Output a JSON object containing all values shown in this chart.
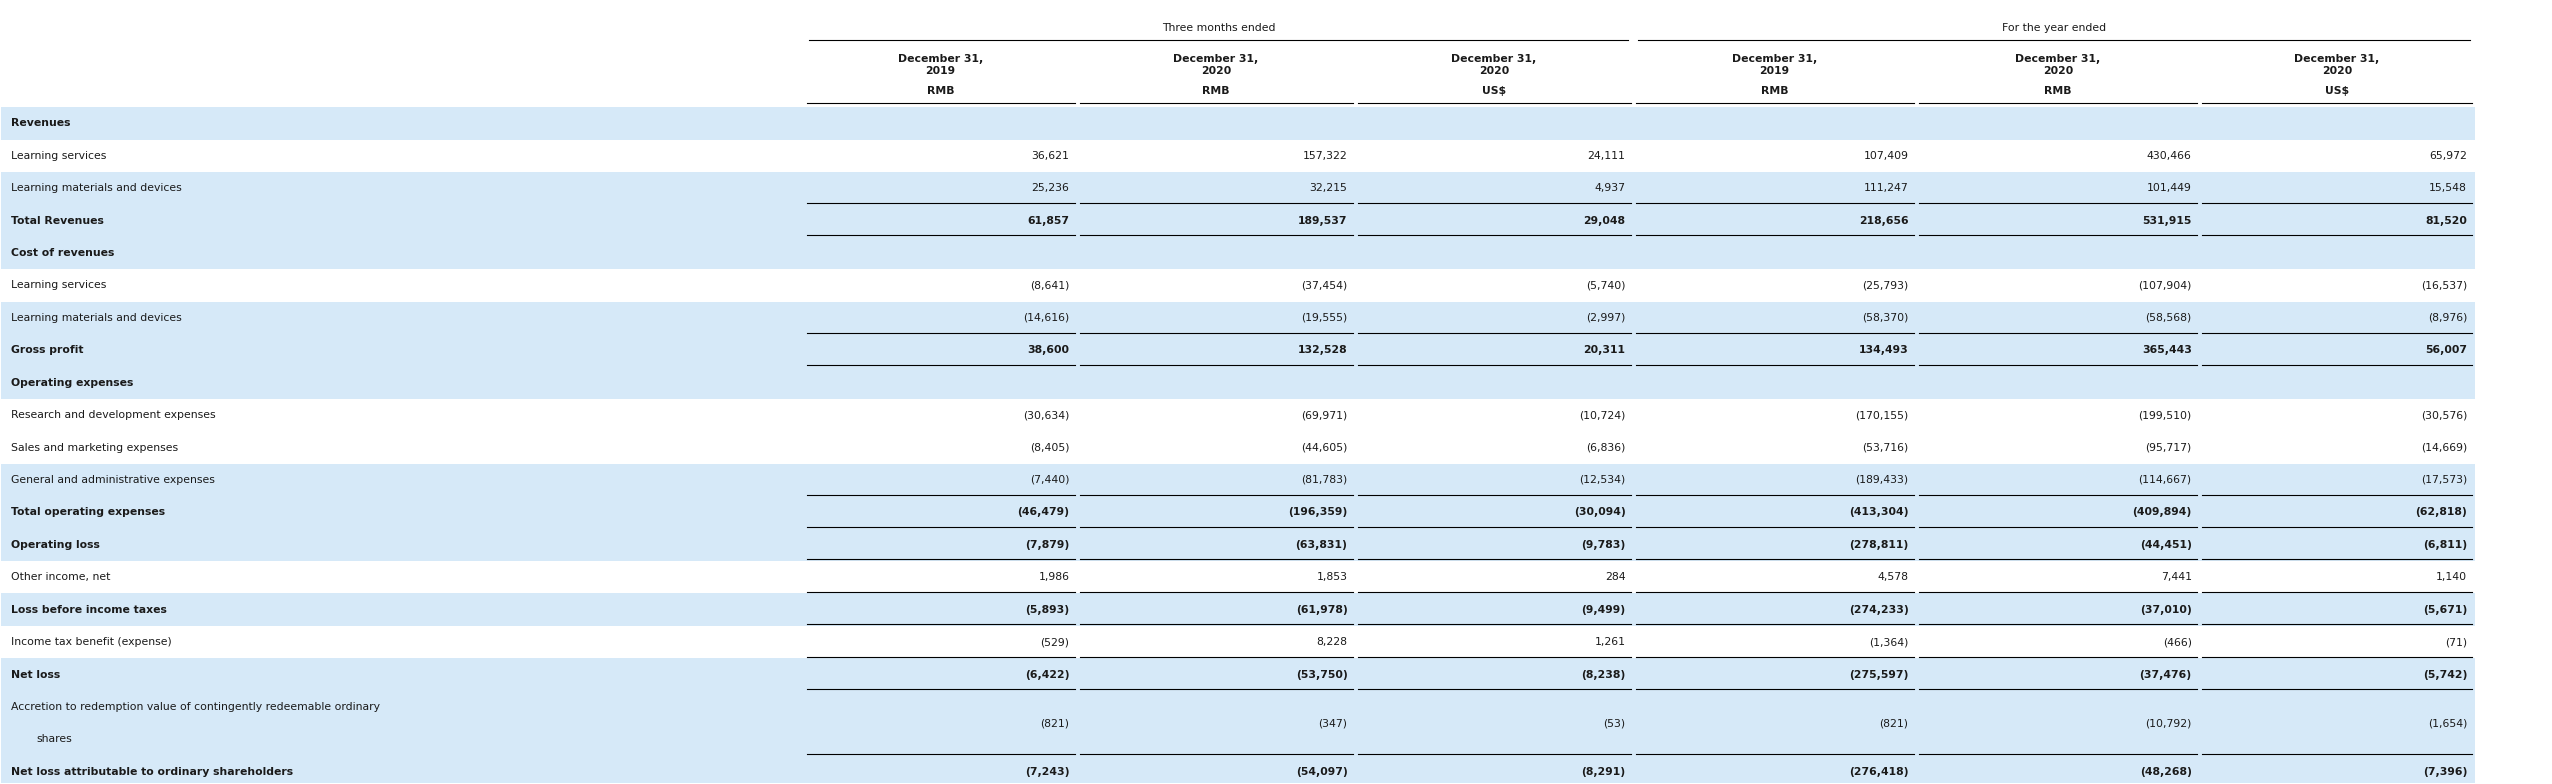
{
  "header_group1": "Three months ended",
  "header_group2": "For the year ended",
  "col_headers_date": [
    "December 31,\n2019",
    "December 31,\n2020",
    "December 31,\n2020",
    "December 31,\n2019",
    "December 31,\n2020",
    "December 31,\n2020"
  ],
  "col_headers_currency": [
    "RMB",
    "RMB",
    "US$",
    "RMB",
    "RMB",
    "US$"
  ],
  "rows": [
    {
      "label": "Revenues",
      "values": [
        "",
        "",
        "",
        "",
        "",
        ""
      ],
      "style": "section_header",
      "bg": "blue"
    },
    {
      "label": "Learning services",
      "values": [
        "36,621",
        "157,322",
        "24,111",
        "107,409",
        "430,466",
        "65,972"
      ],
      "style": "normal",
      "bg": "white"
    },
    {
      "label": "Learning materials and devices",
      "values": [
        "25,236",
        "32,215",
        "4,937",
        "111,247",
        "101,449",
        "15,548"
      ],
      "style": "normal",
      "bg": "blue",
      "underline": true
    },
    {
      "label": "Total Revenues",
      "values": [
        "61,857",
        "189,537",
        "29,048",
        "218,656",
        "531,915",
        "81,520"
      ],
      "style": "bold",
      "bg": "blue",
      "underline": true
    },
    {
      "label": "Cost of revenues",
      "values": [
        "",
        "",
        "",
        "",
        "",
        ""
      ],
      "style": "section_header",
      "bg": "blue"
    },
    {
      "label": "Learning services",
      "values": [
        "(8,641)",
        "(37,454)",
        "(5,740)",
        "(25,793)",
        "(107,904)",
        "(16,537)"
      ],
      "style": "normal",
      "bg": "white"
    },
    {
      "label": "Learning materials and devices",
      "values": [
        "(14,616)",
        "(19,555)",
        "(2,997)",
        "(58,370)",
        "(58,568)",
        "(8,976)"
      ],
      "style": "normal",
      "bg": "blue",
      "underline": true
    },
    {
      "label": "Gross profit",
      "values": [
        "38,600",
        "132,528",
        "20,311",
        "134,493",
        "365,443",
        "56,007"
      ],
      "style": "bold",
      "bg": "blue",
      "underline": true
    },
    {
      "label": "Operating expenses",
      "values": [
        "",
        "",
        "",
        "",
        "",
        ""
      ],
      "style": "section_header",
      "bg": "blue"
    },
    {
      "label": "Research and development expenses",
      "values": [
        "(30,634)",
        "(69,971)",
        "(10,724)",
        "(170,155)",
        "(199,510)",
        "(30,576)"
      ],
      "style": "normal",
      "bg": "white"
    },
    {
      "label": "Sales and marketing expenses",
      "values": [
        "(8,405)",
        "(44,605)",
        "(6,836)",
        "(53,716)",
        "(95,717)",
        "(14,669)"
      ],
      "style": "normal",
      "bg": "white"
    },
    {
      "label": "General and administrative expenses",
      "values": [
        "(7,440)",
        "(81,783)",
        "(12,534)",
        "(189,433)",
        "(114,667)",
        "(17,573)"
      ],
      "style": "normal",
      "bg": "blue",
      "underline": true
    },
    {
      "label": "Total operating expenses",
      "values": [
        "(46,479)",
        "(196,359)",
        "(30,094)",
        "(413,304)",
        "(409,894)",
        "(62,818)"
      ],
      "style": "bold",
      "bg": "blue",
      "underline": true
    },
    {
      "label": "Operating loss",
      "values": [
        "(7,879)",
        "(63,831)",
        "(9,783)",
        "(278,811)",
        "(44,451)",
        "(6,811)"
      ],
      "style": "bold",
      "bg": "blue",
      "underline": true
    },
    {
      "label": "Other income, net",
      "values": [
        "1,986",
        "1,853",
        "284",
        "4,578",
        "7,441",
        "1,140"
      ],
      "style": "normal",
      "bg": "white",
      "underline": true
    },
    {
      "label": "Loss before income taxes",
      "values": [
        "(5,893)",
        "(61,978)",
        "(9,499)",
        "(274,233)",
        "(37,010)",
        "(5,671)"
      ],
      "style": "bold",
      "bg": "blue",
      "underline": true
    },
    {
      "label": "Income tax benefit (expense)",
      "values": [
        "(529)",
        "8,228",
        "1,261",
        "(1,364)",
        "(466)",
        "(71)"
      ],
      "style": "normal",
      "bg": "white",
      "underline": true
    },
    {
      "label": "Net loss",
      "values": [
        "(6,422)",
        "(53,750)",
        "(8,238)",
        "(275,597)",
        "(37,476)",
        "(5,742)"
      ],
      "style": "bold",
      "bg": "blue",
      "underline": true
    },
    {
      "label": "Accretion to redemption value of contingently redeemable ordinary",
      "label2": "    shares",
      "values": [
        "(821)",
        "(347)",
        "(53)",
        "(821)",
        "(10,792)",
        "(1,654)"
      ],
      "style": "normal",
      "bg": "blue",
      "underline": true,
      "two_line": true
    },
    {
      "label": "Net loss attributable to ordinary shareholders",
      "values": [
        "(7,243)",
        "(54,097)",
        "(8,291)",
        "(276,418)",
        "(48,268)",
        "(7,396)"
      ],
      "style": "bold",
      "bg": "blue",
      "underline_double": true
    }
  ],
  "section_bg": "#d6e9f8",
  "white_bg": "#ffffff",
  "fig_width": 25.52,
  "fig_height": 7.84,
  "dpi": 100
}
